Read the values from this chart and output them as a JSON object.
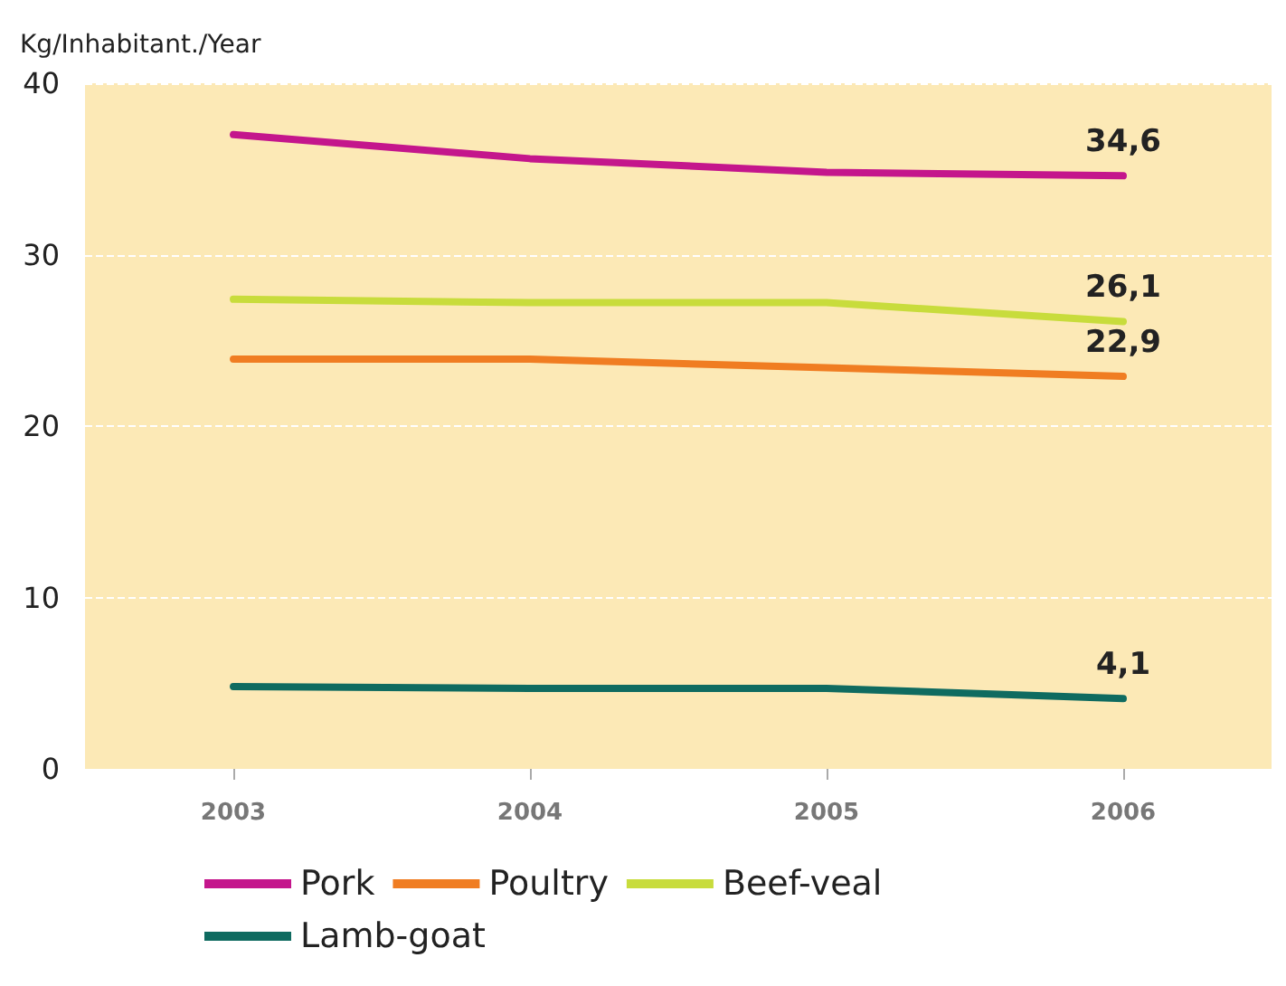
{
  "chart_data": {
    "type": "line",
    "ylabel": "Kg/Inhabitant./Year",
    "categories": [
      "2003",
      "2004",
      "2005",
      "2006"
    ],
    "ylim": [
      0,
      40
    ],
    "yticks": [
      0,
      10,
      20,
      30,
      40
    ],
    "grid": "y",
    "legend": "bottom",
    "marker": "none",
    "line_style": "solid",
    "series": [
      {
        "name": "Pork",
        "color": "#c4168c",
        "values": [
          37.0,
          35.6,
          34.8,
          34.6
        ],
        "value_labels": [
          null,
          null,
          null,
          "34,6"
        ]
      },
      {
        "name": "Poultry",
        "color": "#f07d22",
        "values": [
          23.9,
          23.9,
          23.4,
          22.9
        ],
        "value_labels": [
          null,
          null,
          null,
          "22,9"
        ]
      },
      {
        "name": "Beef-veal",
        "color": "#c8dc3c",
        "values": [
          27.4,
          27.2,
          27.2,
          26.1
        ],
        "value_labels": [
          null,
          null,
          null,
          "26,1"
        ]
      },
      {
        "name": "Lamb-goat",
        "color": "#0f6b60",
        "values": [
          4.8,
          4.7,
          4.7,
          4.1
        ],
        "value_labels": [
          null,
          null,
          null,
          "4,1"
        ]
      }
    ]
  }
}
